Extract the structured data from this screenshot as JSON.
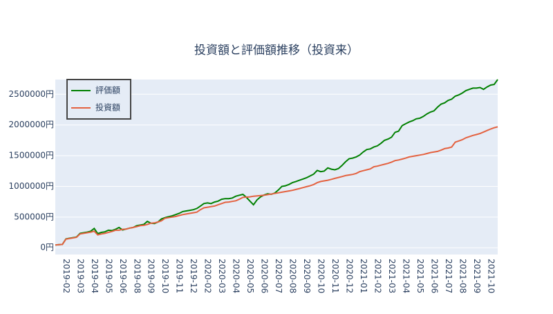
{
  "chart_data": {
    "type": "line",
    "title": "投資額と評価額推移（投資来）",
    "categories": [
      null,
      null,
      null,
      "2019-02",
      null,
      null,
      null,
      "2019-03",
      null,
      null,
      null,
      "2019-04",
      null,
      null,
      null,
      "2019-05",
      null,
      null,
      null,
      "2019-06",
      null,
      null,
      null,
      "2019-08",
      null,
      null,
      null,
      "2019-09",
      null,
      null,
      null,
      "2019-10",
      null,
      null,
      null,
      "2019-11",
      null,
      null,
      null,
      "2019-12",
      null,
      null,
      null,
      "2020-02",
      null,
      null,
      null,
      "2020-03",
      null,
      null,
      null,
      "2020-04",
      null,
      null,
      null,
      "2020-05",
      null,
      null,
      null,
      "2020-06",
      null,
      null,
      null,
      "2020-07",
      null,
      null,
      null,
      "2020-08",
      null,
      null,
      null,
      "2020-09",
      null,
      null,
      null,
      "2020-10",
      null,
      null,
      null,
      "2020-11",
      null,
      null,
      null,
      "2020-12",
      null,
      null,
      null,
      "2021-01",
      null,
      null,
      null,
      "2021-02",
      null,
      null,
      null,
      "2021-03",
      null,
      null,
      null,
      "2021-04",
      null,
      null,
      null,
      "2021-05",
      null,
      null,
      null,
      "2021-06",
      null,
      null,
      null,
      "2021-07",
      null,
      null,
      null,
      "2021-08",
      null,
      null,
      null,
      "2021-09",
      null,
      null,
      null,
      "2021-10",
      null,
      null
    ],
    "series": [
      {
        "name": "評価額",
        "color": "#008000",
        "values": [
          45000,
          50000,
          55000,
          145000,
          155000,
          165000,
          175000,
          235000,
          245000,
          255000,
          270000,
          315000,
          230000,
          250000,
          260000,
          285000,
          280000,
          300000,
          330000,
          290000,
          305000,
          320000,
          330000,
          360000,
          370000,
          380000,
          430000,
          400000,
          395000,
          420000,
          470000,
          490000,
          505000,
          520000,
          540000,
          560000,
          590000,
          600000,
          610000,
          620000,
          640000,
          680000,
          720000,
          730000,
          720000,
          745000,
          760000,
          790000,
          800000,
          800000,
          810000,
          840000,
          855000,
          870000,
          820000,
          760000,
          700000,
          780000,
          830000,
          860000,
          880000,
          870000,
          890000,
          940000,
          1000000,
          1010000,
          1030000,
          1060000,
          1080000,
          1100000,
          1120000,
          1140000,
          1170000,
          1200000,
          1260000,
          1240000,
          1250000,
          1300000,
          1280000,
          1270000,
          1290000,
          1340000,
          1400000,
          1450000,
          1460000,
          1480000,
          1510000,
          1560000,
          1600000,
          1610000,
          1640000,
          1660000,
          1700000,
          1750000,
          1770000,
          1800000,
          1880000,
          1900000,
          1990000,
          2020000,
          2050000,
          2070000,
          2100000,
          2110000,
          2140000,
          2180000,
          2210000,
          2230000,
          2290000,
          2340000,
          2360000,
          2400000,
          2420000,
          2470000,
          2490000,
          2520000,
          2560000,
          2580000,
          2600000,
          2600000,
          2610000,
          2580000,
          2620000,
          2650000,
          2660000,
          2740000
        ]
      },
      {
        "name": "投資額",
        "color": "#e4613f",
        "values": [
          45000,
          50000,
          55000,
          140000,
          150000,
          160000,
          170000,
          225000,
          235000,
          245000,
          255000,
          270000,
          210000,
          225000,
          235000,
          250000,
          265000,
          285000,
          285000,
          300000,
          305000,
          320000,
          330000,
          345000,
          360000,
          365000,
          380000,
          400000,
          405000,
          420000,
          440000,
          480000,
          490000,
          500000,
          510000,
          525000,
          540000,
          550000,
          560000,
          570000,
          580000,
          620000,
          650000,
          660000,
          670000,
          680000,
          700000,
          720000,
          740000,
          745000,
          755000,
          765000,
          790000,
          820000,
          825000,
          830000,
          840000,
          845000,
          850000,
          855000,
          865000,
          875000,
          885000,
          895000,
          905000,
          915000,
          925000,
          935000,
          950000,
          965000,
          980000,
          995000,
          1010000,
          1030000,
          1060000,
          1080000,
          1090000,
          1100000,
          1115000,
          1130000,
          1145000,
          1160000,
          1175000,
          1185000,
          1195000,
          1210000,
          1240000,
          1255000,
          1270000,
          1285000,
          1320000,
          1330000,
          1345000,
          1360000,
          1375000,
          1395000,
          1420000,
          1430000,
          1445000,
          1460000,
          1480000,
          1490000,
          1500000,
          1510000,
          1520000,
          1535000,
          1550000,
          1560000,
          1570000,
          1590000,
          1615000,
          1625000,
          1640000,
          1720000,
          1740000,
          1760000,
          1790000,
          1810000,
          1830000,
          1845000,
          1860000,
          1885000,
          1910000,
          1935000,
          1955000,
          1970000
        ]
      }
    ],
    "ylim": [
      -110000,
      2740000
    ],
    "yticks": [
      {
        "value": 0,
        "label": "0円"
      },
      {
        "value": 500000,
        "label": "500000円"
      },
      {
        "value": 1000000,
        "label": "1000000円"
      },
      {
        "value": 1500000,
        "label": "1500000円"
      },
      {
        "value": 2000000,
        "label": "2000000円"
      },
      {
        "value": 2500000,
        "label": "2500000円"
      }
    ],
    "grid": true,
    "legend": "top-left"
  }
}
